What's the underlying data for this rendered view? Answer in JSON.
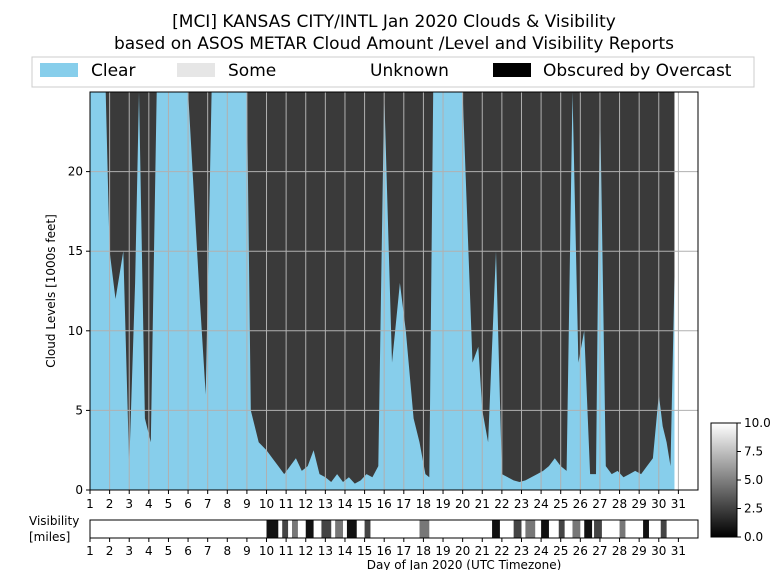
{
  "chart_data": {
    "type": "area",
    "title": "[MCI] KANSAS CITY/INTL Jan 2020 Clouds & Visibility",
    "subtitle": "based on ASOS METAR Cloud Amount /Level and Visibility Reports",
    "ylabel": "Cloud Levels [1000s feet]",
    "xlabel": "Day of Jan 2020 (UTC Timezone)",
    "ylim": [
      0,
      25
    ],
    "xlim": [
      1,
      32
    ],
    "yticks": [
      0,
      5,
      10,
      15,
      20
    ],
    "xticks": [
      "1",
      "2",
      "3",
      "4",
      "5",
      "6",
      "7",
      "8",
      "9",
      "10",
      "11",
      "12",
      "13",
      "14",
      "15",
      "16",
      "17",
      "18",
      "19",
      "20",
      "21",
      "22",
      "23",
      "24",
      "25",
      "26",
      "27",
      "28",
      "29",
      "30",
      "31"
    ],
    "grid": true,
    "legend_position": "top",
    "legend": [
      {
        "label": "Clear",
        "color": "#87ceeb"
      },
      {
        "label": "Some",
        "color": "#e6e6e6"
      },
      {
        "label": "Unknown",
        "color": "#ffffff"
      },
      {
        "label": "Obscured by Overcast",
        "color": "#000000"
      }
    ],
    "overcast_ceiling": {
      "x": [
        1.0,
        1.8,
        2.0,
        2.3,
        2.7,
        3.0,
        3.3,
        3.5,
        3.8,
        4.1,
        4.4,
        5.0,
        6.0,
        6.6,
        6.9,
        7.2,
        8.0,
        9.0,
        9.2,
        9.6,
        10.0,
        10.3,
        10.6,
        10.9,
        11.2,
        11.5,
        11.8,
        12.1,
        12.4,
        12.7,
        13.0,
        13.3,
        13.6,
        13.9,
        14.2,
        14.5,
        14.8,
        15.1,
        15.4,
        15.7,
        16.0,
        16.4,
        16.8,
        17.1,
        17.5,
        17.8,
        18.1,
        18.3,
        18.5,
        18.8,
        19.0,
        19.5,
        20.0,
        20.5,
        20.8,
        21.0,
        21.3,
        21.7,
        22.0,
        22.3,
        22.6,
        22.9,
        23.2,
        23.5,
        23.8,
        24.1,
        24.4,
        24.7,
        25.0,
        25.3,
        25.6,
        25.9,
        26.2,
        26.5,
        26.8,
        27.0,
        27.3,
        27.6,
        27.9,
        28.2,
        28.5,
        28.8,
        29.1,
        29.4,
        29.7,
        30.0,
        30.2,
        30.4,
        30.6,
        31.0
      ],
      "y": [
        25,
        25,
        15,
        12,
        15,
        1.5,
        13,
        25,
        4.5,
        3,
        25,
        25,
        25,
        12,
        6,
        25,
        25,
        25,
        5,
        3,
        2.5,
        2,
        1.5,
        1,
        1.5,
        2,
        1.2,
        1.5,
        2.5,
        1,
        0.8,
        0.5,
        1,
        0.5,
        0.8,
        0.4,
        0.6,
        1,
        0.8,
        1.5,
        25,
        8,
        13,
        10,
        4.5,
        3,
        1,
        0.8,
        25,
        25,
        25,
        25,
        25,
        8,
        9,
        5,
        3,
        15,
        1,
        0.8,
        0.6,
        0.5,
        0.6,
        0.8,
        1,
        1.2,
        1.5,
        2,
        1.5,
        1.2,
        25,
        8,
        10,
        1,
        1,
        25,
        1.5,
        1,
        1.2,
        0.8,
        1,
        1.2,
        1,
        1.5,
        2,
        6,
        4,
        3,
        1.5,
        25
      ]
    },
    "visibility_scale": {
      "ticks": [
        0.0,
        2.5,
        5.0,
        7.5,
        10.0
      ],
      "tick_labels": [
        "0.0",
        "2.5",
        "5.0",
        "7.5",
        "10.0"
      ]
    },
    "visibility_label": "Visibility\n[miles]"
  }
}
